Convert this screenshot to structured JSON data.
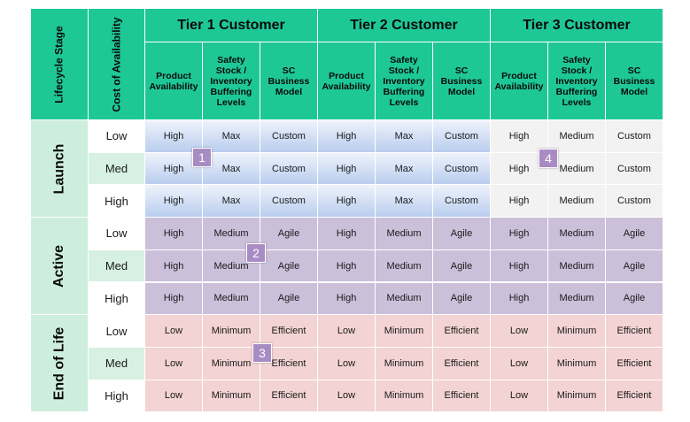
{
  "header": {
    "lifecycle_stage": "Lifecycle Stage",
    "cost_of_availability": "Cost of Availability",
    "tiers": [
      "Tier 1 Customer",
      "Tier 2 Customer",
      "Tier 3 Customer"
    ],
    "subheaders": [
      "Product Availability",
      "Safety Stock / Inventory Buffering Levels",
      "SC Business Model"
    ]
  },
  "stages": [
    {
      "name": "Launch",
      "rows": [
        {
          "cost": "Low",
          "cells": [
            "High",
            "Max",
            "Custom",
            "High",
            "Max",
            "Custom",
            "High",
            "Medium",
            "Custom"
          ]
        },
        {
          "cost": "Med",
          "cells": [
            "High",
            "Max",
            "Custom",
            "High",
            "Max",
            "Custom",
            "High",
            "Medium",
            "Custom"
          ]
        },
        {
          "cost": "High",
          "cells": [
            "High",
            "Max",
            "Custom",
            "High",
            "Max",
            "Custom",
            "High",
            "Medium",
            "Custom"
          ]
        }
      ]
    },
    {
      "name": "Active",
      "rows": [
        {
          "cost": "Low",
          "cells": [
            "High",
            "Medium",
            "Agile",
            "High",
            "Medium",
            "Agile",
            "High",
            "Medium",
            "Agile"
          ]
        },
        {
          "cost": "Med",
          "cells": [
            "High",
            "Medium",
            "Agile",
            "High",
            "Medium",
            "Agile",
            "High",
            "Medium",
            "Agile"
          ]
        },
        {
          "cost": "High",
          "cells": [
            "High",
            "Medium",
            "Agile",
            "High",
            "Medium",
            "Agile",
            "High",
            "Medium",
            "Agile"
          ]
        }
      ]
    },
    {
      "name": "End of Life",
      "rows": [
        {
          "cost": "Low",
          "cells": [
            "Low",
            "Minimum",
            "Efficient",
            "Low",
            "Minimum",
            "Efficient",
            "Low",
            "Minimum",
            "Efficient"
          ]
        },
        {
          "cost": "Med",
          "cells": [
            "Low",
            "Minimum",
            "Efficient",
            "Low",
            "Minimum",
            "Efficient",
            "Low",
            "Minimum",
            "Efficient"
          ]
        },
        {
          "cost": "High",
          "cells": [
            "Low",
            "Minimum",
            "Efficient",
            "Low",
            "Minimum",
            "Efficient",
            "Low",
            "Minimum",
            "Efficient"
          ]
        }
      ]
    }
  ],
  "badges": [
    "1",
    "2",
    "3",
    "4"
  ],
  "colors": {
    "header": "#1ec896",
    "stage_cell": "#cdeede",
    "cost_low_high": "#ffffff",
    "cost_med": "#d6f1e4",
    "launch_blue_top": "#eef3fb",
    "launch_blue_bottom": "#b9cdee",
    "launch_grey": "#f2f2f2",
    "active": "#cbbfda",
    "end_of_life": "#f3d3d3",
    "badge": "#a98cc4"
  }
}
